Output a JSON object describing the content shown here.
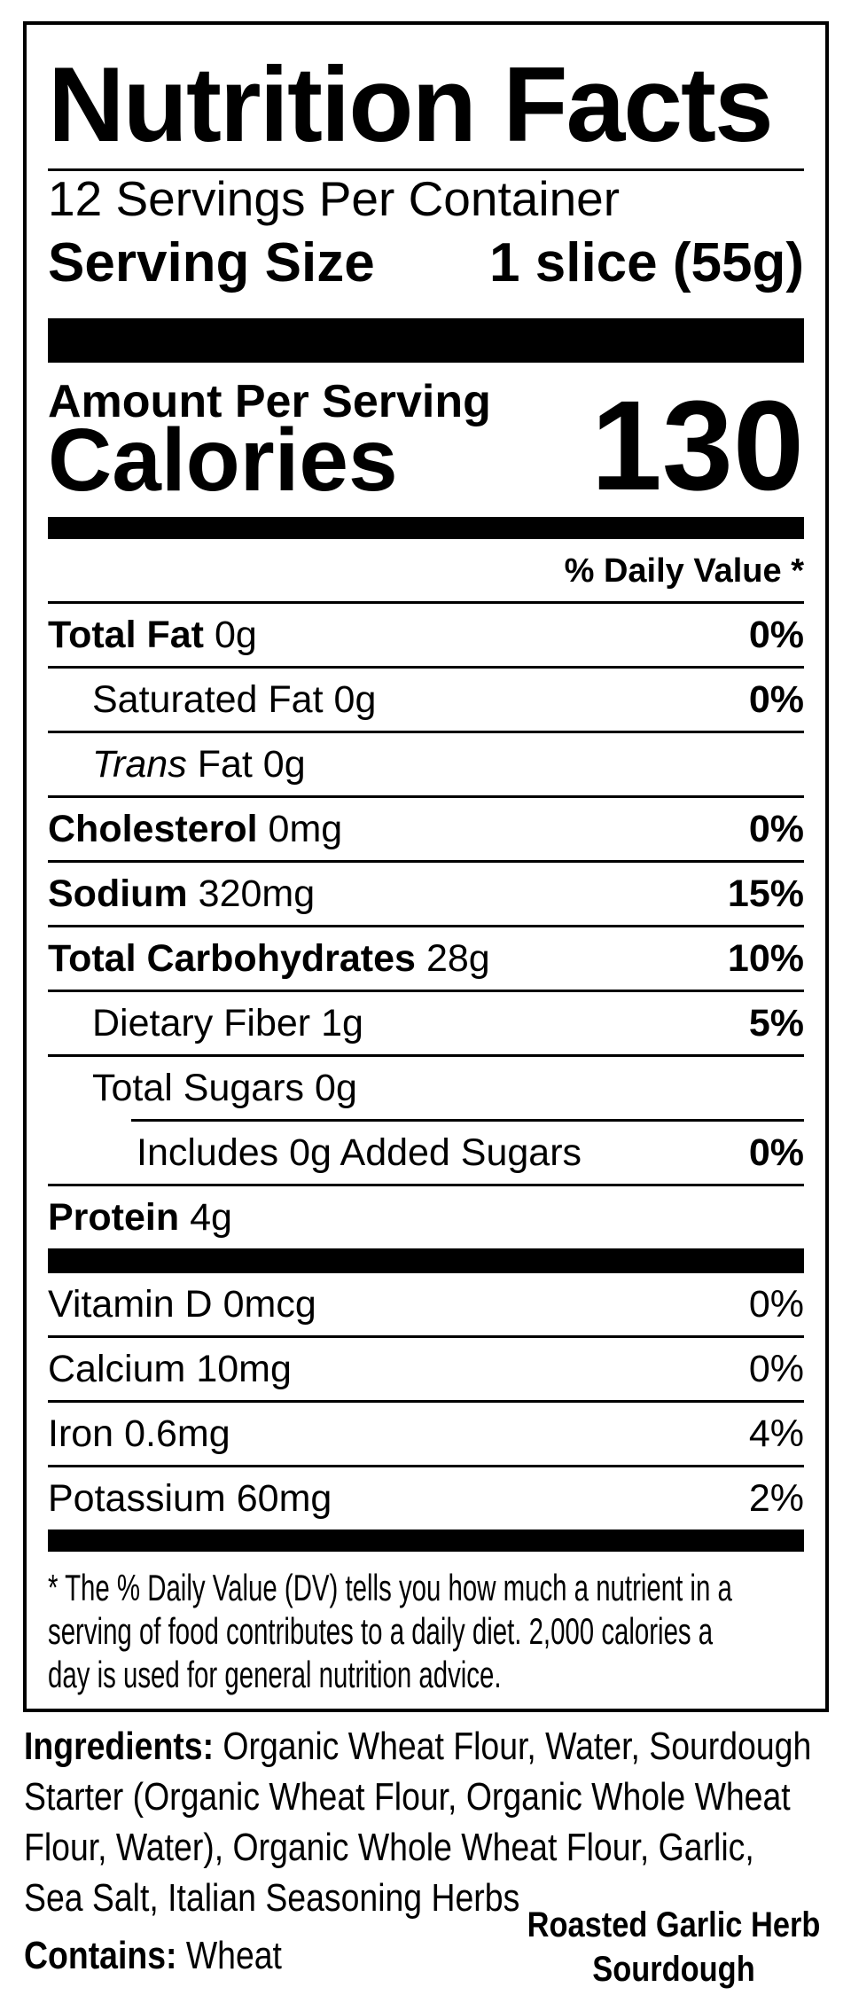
{
  "colors": {
    "ink": "#000000",
    "paper": "#ffffff"
  },
  "title": "Nutrition Facts",
  "servings_per_container": "12 Servings Per Container",
  "serving_size": {
    "label": "Serving Size",
    "value": "1 slice (55g)"
  },
  "amount_per_serving": "Amount Per Serving",
  "calories": {
    "label": "Calories",
    "value": "130"
  },
  "daily_value_header": "% Daily Value *",
  "rows": [
    {
      "name": "Total Fat",
      "amount": "0g",
      "dv": "0%"
    },
    {
      "name": "Saturated Fat",
      "amount": "0g",
      "dv": "0%"
    },
    {
      "name": "Trans",
      "amount": "Fat 0g",
      "dv": ""
    },
    {
      "name": "Cholesterol",
      "amount": "0mg",
      "dv": "0%"
    },
    {
      "name": "Sodium",
      "amount": "320mg",
      "dv": "15%"
    },
    {
      "name": "Total Carbohydrates",
      "amount": "28g",
      "dv": "10%"
    },
    {
      "name": "Dietary Fiber",
      "amount": "1g",
      "dv": "5%"
    },
    {
      "name": "Total Sugars",
      "amount": "0g",
      "dv": ""
    },
    {
      "name": "Includes 0g Added Sugars",
      "amount": "",
      "dv": "0%"
    },
    {
      "name": "Protein",
      "amount": "4g",
      "dv": ""
    },
    {
      "name": "Vitamin D",
      "amount": "0mcg",
      "dv": "0%"
    },
    {
      "name": "Calcium",
      "amount": "10mg",
      "dv": "0%"
    },
    {
      "name": "Iron",
      "amount": "0.6mg",
      "dv": "4%"
    },
    {
      "name": "Potassium",
      "amount": "60mg",
      "dv": "2%"
    }
  ],
  "footnote_lines": [
    "* The % Daily Value (DV) tells you how much a nutrient in a",
    "serving of food contributes to a daily diet. 2,000 calories a",
    "day is used for general nutrition advice."
  ],
  "ingredients": {
    "label": "Ingredients:",
    "line1_rest": "Organic Wheat Flour, Water, Sourdough",
    "lines": [
      "Starter (Organic Wheat Flour, Organic Whole Wheat",
      "Flour, Water), Organic Whole Wheat Flour, Garlic,",
      "Sea Salt, Italian Seasoning Herbs"
    ]
  },
  "contains": {
    "label": "Contains:",
    "value": "Wheat"
  },
  "product_name": {
    "line1": "Roasted Garlic Herb",
    "line2": "Sourdough"
  }
}
